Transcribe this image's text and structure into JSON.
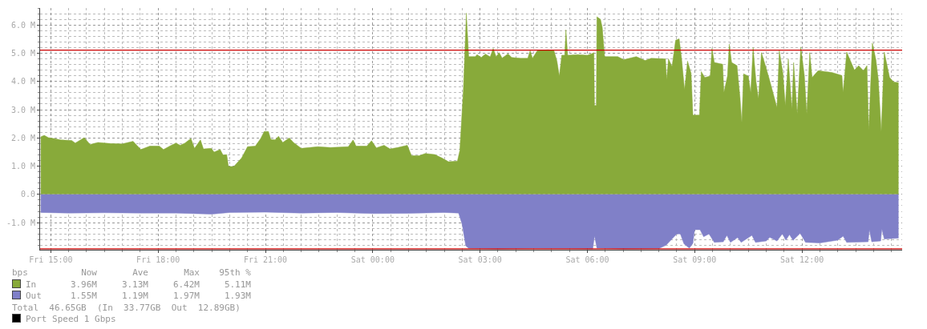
{
  "chart_data": {
    "type": "area",
    "xlim": [
      "--01-01T14:42",
      "--01-02T14:48"
    ],
    "ylim": [
      -1.96,
      6.6
    ],
    "xticks": [
      {
        "value": "--01-01T15:00",
        "label": "Fri 15:00"
      },
      {
        "value": "--01-01T18:00",
        "label": "Fri 18:00"
      },
      {
        "value": "--01-01T21:00",
        "label": "Fri 21:00"
      },
      {
        "value": "--01-02T00:00",
        "label": "Sat 00:00"
      },
      {
        "value": "--01-02T03:00",
        "label": "Sat 03:00"
      },
      {
        "value": "--01-02T06:00",
        "label": "Sat 06:00"
      },
      {
        "value": "--01-02T09:00",
        "label": "Sat 09:00"
      },
      {
        "value": "--01-02T12:00",
        "label": "Sat 12:00"
      }
    ],
    "yticks": [
      {
        "value": -1,
        "label": "-1.0 M"
      },
      {
        "value": 0,
        "label": "0.0"
      },
      {
        "value": 1,
        "label": "1.0 M"
      },
      {
        "value": 2,
        "label": "2.0 M"
      },
      {
        "value": 3,
        "label": "3.0 M"
      },
      {
        "value": 4,
        "label": "4.0 M"
      },
      {
        "value": 5,
        "label": "5.0 M"
      },
      {
        "value": 6,
        "label": "6.0 M"
      }
    ],
    "grid": true,
    "legend": "bottom",
    "marker": "none",
    "series": [
      {
        "name": "In",
        "color": "#88aa3a",
        "x": [
          "--01-01T14:43",
          "--01-01T14:49",
          "--01-01T14:56",
          "--01-01T15:05",
          "--01-01T15:17",
          "--01-01T15:35",
          "--01-01T15:41",
          "--01-01T15:56",
          "--01-01T16:06",
          "--01-01T16:19",
          "--01-01T16:40",
          "--01-01T17:00",
          "--01-01T17:18",
          "--01-01T17:31",
          "--01-01T17:46",
          "--01-01T18:02",
          "--01-01T18:09",
          "--01-01T18:22",
          "--01-01T18:30",
          "--01-01T18:37",
          "--01-01T18:45",
          "--01-01T18:55",
          "--01-01T19:01",
          "--01-01T19:11",
          "--01-01T19:16",
          "--01-01T19:29",
          "--01-01T19:34",
          "--01-01T19:44",
          "--01-01T19:49",
          "--01-01T19:55",
          "--01-01T19:58",
          "--01-01T20:07",
          "--01-01T20:20",
          "--01-01T20:30",
          "--01-01T20:43",
          "--01-01T20:52",
          "--01-01T20:58",
          "--01-01T21:05",
          "--01-01T21:09",
          "--01-01T21:16",
          "--01-01T21:22",
          "--01-01T21:29",
          "--01-01T21:40",
          "--01-01T21:47",
          "--01-01T22:00",
          "--01-01T22:28",
          "--01-01T22:49",
          "--01-01T23:19",
          "--01-01T23:27",
          "--01-01T23:32",
          "--01-01T23:50",
          "--01-01T23:58",
          "--01-02T00:06",
          "--01-02T00:19",
          "--01-02T00:29",
          "--01-02T00:42",
          "--01-02T00:58",
          "--01-02T01:05",
          "--01-02T01:18",
          "--01-02T01:28",
          "--01-02T01:44",
          "--01-02T01:56",
          "--01-02T02:07",
          "--01-02T02:22",
          "--01-02T02:26",
          "--01-02T02:32",
          "--01-02T02:37",
          "--01-02T02:41",
          "--01-02T02:52",
          "--01-02T02:55",
          "--01-02T03:02",
          "--01-02T03:09",
          "--01-02T03:17",
          "--01-02T03:22",
          "--01-02T03:27",
          "--01-02T03:32",
          "--01-02T03:37",
          "--01-02T03:47",
          "--01-02T03:53",
          "--01-02T04:08",
          "--01-02T04:20",
          "--01-02T04:24",
          "--01-02T04:28",
          "--01-02T04:36",
          "--01-02T04:54",
          "--01-02T05:04",
          "--01-02T05:09",
          "--01-02T05:13",
          "--01-02T05:17",
          "--01-02T05:22",
          "--01-02T05:24",
          "--01-02T05:27",
          "--01-02T05:44",
          "--01-02T06:00",
          "--01-02T06:07",
          "--01-02T06:11",
          "--01-02T06:12",
          "--01-02T06:15",
          "--01-02T06:16",
          "--01-02T06:22",
          "--01-02T06:25",
          "--01-02T06:29",
          "--01-02T06:51",
          "--01-02T07:01",
          "--01-02T07:22",
          "--01-02T07:37",
          "--01-02T07:47",
          "--01-02T08:11",
          "--01-02T08:13",
          "--01-02T08:16",
          "--01-02T08:22",
          "--01-02T08:28",
          "--01-02T08:34",
          "--01-02T08:38",
          "--01-02T08:43",
          "--01-02T08:48",
          "--01-02T08:54",
          "--01-02T08:57",
          "--01-02T09:08",
          "--01-02T09:11",
          "--01-02T09:17",
          "--01-02T09:26",
          "--01-02T09:29",
          "--01-02T09:33",
          "--01-02T09:47",
          "--01-02T09:49",
          "--01-02T09:55",
          "--01-02T09:58",
          "--01-02T10:02",
          "--01-02T10:11",
          "--01-02T10:16",
          "--01-02T10:19",
          "--01-02T10:22",
          "--01-02T10:30",
          "--01-02T10:34",
          "--01-02T10:38",
          "--01-02T10:43",
          "--01-02T10:47",
          "--01-02T10:52",
          "--01-02T10:58",
          "--01-02T11:05",
          "--01-02T11:18",
          "--01-02T11:22",
          "--01-02T11:28",
          "--01-02T11:32",
          "--01-02T11:37",
          "--01-02T11:43",
          "--01-02T11:46",
          "--01-02T11:52",
          "--01-02T11:58",
          "--01-02T12:04",
          "--01-02T12:08",
          "--01-02T12:13",
          "--01-02T12:17",
          "--01-02T12:27",
          "--01-02T12:50",
          "--01-02T13:07",
          "--01-02T13:09",
          "--01-02T13:15",
          "--01-02T13:28",
          "--01-02T13:35",
          "--01-02T13:43",
          "--01-02T13:49",
          "--01-02T13:52",
          "--01-02T13:58",
          "--01-02T14:04",
          "--01-02T14:08",
          "--01-02T14:13",
          "--01-02T14:18",
          "--01-02T14:27",
          "--01-02T14:34",
          "--01-02T14:42"
        ],
        "values": [
          2.04,
          2.09,
          2.01,
          1.98,
          1.93,
          1.91,
          1.82,
          2.01,
          1.77,
          1.84,
          1.8,
          1.79,
          1.88,
          1.59,
          1.71,
          1.71,
          1.59,
          1.74,
          1.82,
          1.74,
          1.82,
          1.98,
          1.63,
          1.93,
          1.61,
          1.63,
          1.5,
          1.59,
          1.39,
          1.41,
          0.99,
          0.99,
          1.29,
          1.69,
          1.71,
          1.98,
          2.23,
          2.23,
          1.95,
          1.93,
          2.06,
          1.84,
          2.0,
          1.84,
          1.63,
          1.69,
          1.66,
          1.69,
          1.93,
          1.71,
          1.71,
          1.9,
          1.65,
          1.74,
          1.61,
          1.66,
          1.74,
          1.37,
          1.37,
          1.45,
          1.41,
          1.29,
          1.16,
          1.18,
          1.55,
          3.7,
          6.42,
          4.88,
          4.88,
          4.95,
          4.85,
          4.97,
          4.87,
          5.17,
          4.88,
          5.02,
          4.83,
          4.98,
          4.85,
          4.82,
          4.82,
          5.09,
          4.82,
          5.09,
          5.12,
          5.09,
          4.72,
          4.19,
          4.93,
          4.93,
          5.83,
          4.93,
          4.95,
          4.93,
          4.98,
          5.02,
          3.15,
          3.15,
          6.29,
          6.2,
          5.91,
          4.88,
          4.88,
          4.77,
          4.88,
          4.74,
          4.82,
          4.8,
          4.06,
          4.8,
          4.53,
          5.46,
          5.51,
          4.82,
          3.71,
          4.72,
          4.29,
          2.81,
          2.81,
          4.35,
          4.14,
          4.19,
          5.17,
          4.67,
          4.61,
          3.61,
          4.19,
          5.32,
          4.67,
          4.56,
          3.45,
          2.55,
          4.27,
          4.19,
          3.61,
          5.2,
          3.98,
          3.39,
          5.02,
          4.61,
          4.1,
          3.08,
          5.09,
          4.29,
          3.15,
          4.8,
          3.02,
          4.67,
          2.86,
          5.22,
          4.21,
          2.86,
          5.02,
          4.14,
          4.38,
          4.32,
          4.21,
          3.61,
          5.04,
          4.4,
          4.56,
          4.38,
          4.56,
          2.28,
          5.36,
          4.77,
          4.08,
          2.23,
          5.04,
          4.14,
          3.98,
          3.96
        ]
      },
      {
        "name": "Out",
        "color": "#8080c8",
        "x": [
          "--01-01T14:43",
          "--01-01T15:30",
          "--01-01T16:30",
          "--01-01T17:30",
          "--01-01T18:30",
          "--01-01T19:30",
          "--01-01T20:00",
          "--01-01T21:00",
          "--01-01T22:00",
          "--01-01T23:00",
          "--01-02T00:00",
          "--01-02T01:00",
          "--01-02T02:00",
          "--01-02T02:24",
          "--01-02T02:30",
          "--01-02T02:36",
          "--01-02T02:41",
          "--01-02T03:30",
          "--01-02T04:30",
          "--01-02T05:30",
          "--01-02T06:09",
          "--01-02T06:12",
          "--01-02T06:16",
          "--01-02T07:00",
          "--01-02T08:00",
          "--01-02T08:12",
          "--01-02T08:30",
          "--01-02T08:36",
          "--01-02T08:42",
          "--01-02T08:51",
          "--01-02T08:57",
          "--01-02T09:00",
          "--01-02T09:09",
          "--01-02T09:15",
          "--01-02T09:24",
          "--01-02T09:33",
          "--01-02T09:48",
          "--01-02T09:54",
          "--01-02T10:00",
          "--01-02T10:12",
          "--01-02T10:18",
          "--01-02T10:36",
          "--01-02T10:42",
          "--01-02T11:00",
          "--01-02T11:06",
          "--01-02T11:18",
          "--01-02T11:27",
          "--01-02T11:33",
          "--01-02T11:39",
          "--01-02T11:45",
          "--01-02T11:57",
          "--01-02T12:06",
          "--01-02T12:30",
          "--01-02T13:00",
          "--01-02T13:09",
          "--01-02T13:15",
          "--01-02T13:51",
          "--01-02T13:53",
          "--01-02T13:57",
          "--01-02T14:12",
          "--01-02T14:14",
          "--01-02T14:18",
          "--01-02T14:42"
        ],
        "values": [
          -0.64,
          -0.66,
          -0.65,
          -0.66,
          -0.66,
          -0.7,
          -0.64,
          -0.63,
          -0.66,
          -0.64,
          -0.68,
          -0.67,
          -0.64,
          -0.66,
          -1.07,
          -1.82,
          -1.91,
          -1.93,
          -1.91,
          -1.92,
          -1.93,
          -1.47,
          -1.9,
          -1.93,
          -1.92,
          -1.8,
          -1.4,
          -1.4,
          -1.75,
          -1.9,
          -1.73,
          -1.25,
          -1.25,
          -1.5,
          -1.4,
          -1.7,
          -1.68,
          -1.45,
          -1.7,
          -1.53,
          -1.7,
          -1.45,
          -1.7,
          -1.65,
          -1.52,
          -1.65,
          -1.4,
          -1.62,
          -1.42,
          -1.63,
          -1.38,
          -1.7,
          -1.72,
          -1.62,
          -1.48,
          -1.7,
          -1.68,
          -1.25,
          -1.68,
          -1.65,
          -1.22,
          -1.58,
          -1.55
        ]
      }
    ],
    "ref_lines": [
      {
        "axis": "y",
        "value": 5.11,
        "color": "#cc0000"
      },
      {
        "axis": "y",
        "value": -1.93,
        "color": "#cc0000"
      }
    ],
    "annotations": [
      "bps",
      "Now",
      "Ave",
      "Max",
      "95th %",
      "3.96M",
      "3.13M",
      "6.42M",
      "5.11M",
      "1.55M",
      "1.19M",
      "1.97M",
      "1.93M",
      "Total  46.65GB  (In  33.77GB  Out  12.89GB)",
      "Port Speed 1 Gbps"
    ]
  }
}
